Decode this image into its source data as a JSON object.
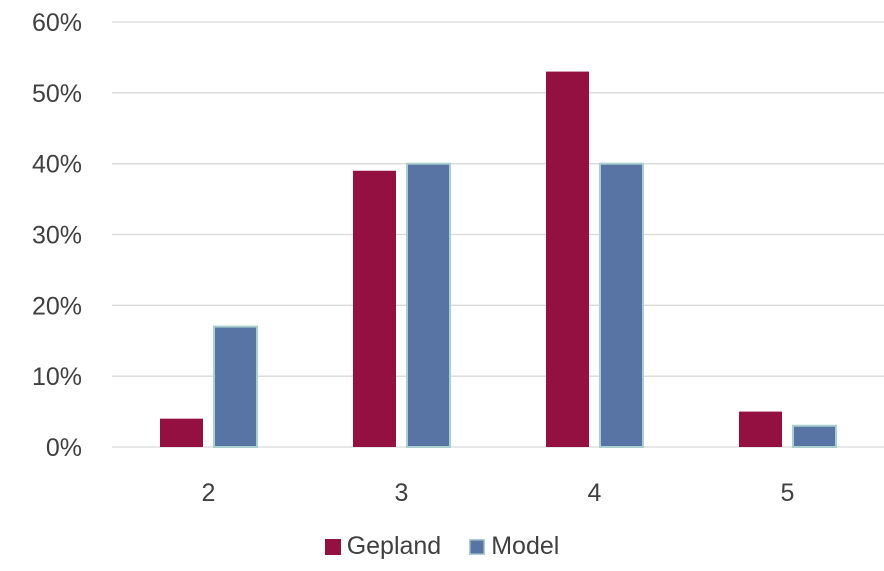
{
  "chart_data": {
    "type": "bar",
    "title": "",
    "xlabel": "",
    "ylabel": "",
    "categories": [
      "2",
      "3",
      "4",
      "5"
    ],
    "series": [
      {
        "name": "Gepland",
        "color": "#941040",
        "values": [
          4,
          39,
          53,
          5
        ]
      },
      {
        "name": "Model",
        "color": "#5874A4",
        "values": [
          17,
          40,
          40,
          3
        ]
      }
    ],
    "ylim": [
      0,
      60
    ],
    "yticks": [
      "0%",
      "10%",
      "20%",
      "30%",
      "40%",
      "50%",
      "60%"
    ],
    "grid": true,
    "legend_position": "bottom",
    "gridline_color": "#D9D9D9",
    "model_bar_outline_color": "#A9CFCF"
  }
}
